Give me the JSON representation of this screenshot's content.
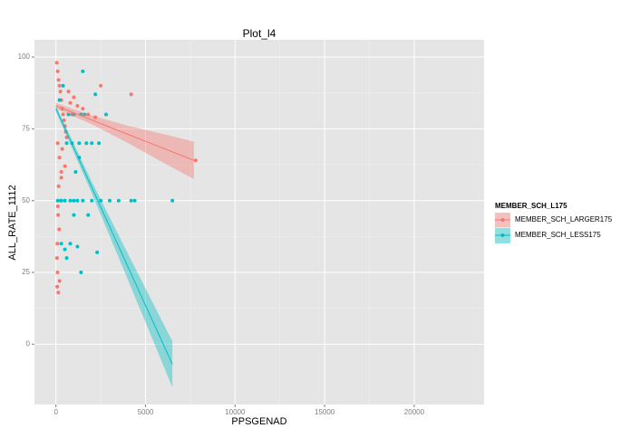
{
  "chart_data": {
    "type": "scatter",
    "title": "Plot_l4",
    "x_label": "PPSGENAD",
    "y_label": "ALL_RATE_1112",
    "legend_title": "MEMBER_SCH_L175",
    "legend_position": "right",
    "grid": true,
    "xlim": [
      -1200,
      23900
    ],
    "ylim": [
      -21,
      106
    ],
    "xticks": [
      0,
      5000,
      10000,
      15000,
      20000
    ],
    "yticks": [
      0,
      25,
      50,
      75,
      100
    ],
    "series": [
      {
        "name": "MEMBER_SCH_LARGER175",
        "color": "#F8766D",
        "x": [
          50,
          100,
          150,
          200,
          250,
          300,
          350,
          400,
          450,
          500,
          550,
          600,
          700,
          800,
          900,
          1000,
          1200,
          1500,
          1800,
          2200,
          2500,
          4200,
          7800,
          100,
          200,
          300,
          150,
          250,
          120,
          180,
          80,
          60,
          90,
          200,
          350,
          500,
          130,
          70,
          300,
          110
        ],
        "y": [
          98,
          95,
          92,
          90,
          88,
          85,
          82,
          80,
          78,
          76,
          74,
          72,
          88,
          84,
          80,
          86,
          83,
          82,
          80,
          79,
          90,
          87,
          64,
          70,
          65,
          60,
          55,
          50,
          45,
          40,
          35,
          30,
          25,
          22,
          68,
          62,
          18,
          20,
          58,
          48
        ],
        "fit": {
          "x": [
            0,
            2000,
            4000,
            6000,
            7700
          ],
          "y": [
            83,
            78.1,
            73.1,
            68.2,
            64
          ],
          "ymin": [
            82,
            76.6,
            70.1,
            63.2,
            57.5
          ],
          "ymax": [
            84,
            79.6,
            76.1,
            73.2,
            70.5
          ]
        }
      },
      {
        "name": "MEMBER_SCH_LESS175",
        "color": "#00BFC4",
        "x": [
          100,
          300,
          500,
          800,
          1000,
          1200,
          1500,
          2000,
          2500,
          3000,
          3500,
          4200,
          4400,
          6500,
          600,
          900,
          1300,
          1700,
          2000,
          2400,
          700,
          1000,
          1400,
          1600,
          2800,
          1100,
          1300,
          2200,
          300,
          600,
          1400,
          1000,
          500,
          800,
          1200,
          2300,
          1800,
          400,
          200,
          1500
        ],
        "y": [
          50,
          50,
          50,
          50,
          50,
          50,
          50,
          50,
          50,
          50,
          50,
          50,
          50,
          50,
          70,
          70,
          70,
          70,
          70,
          70,
          80,
          80,
          80,
          80,
          80,
          60,
          65,
          87,
          35,
          30,
          25,
          45,
          33,
          35,
          34,
          32,
          45,
          90,
          85,
          95
        ],
        "fit": {
          "x": [
            0,
            2000,
            4000,
            6500
          ],
          "y": [
            82,
            54.6,
            27.2,
            -7
          ],
          "ymin": [
            81,
            52.6,
            22.7,
            -15
          ],
          "ymax": [
            83,
            56.6,
            31.7,
            1
          ]
        }
      }
    ]
  }
}
